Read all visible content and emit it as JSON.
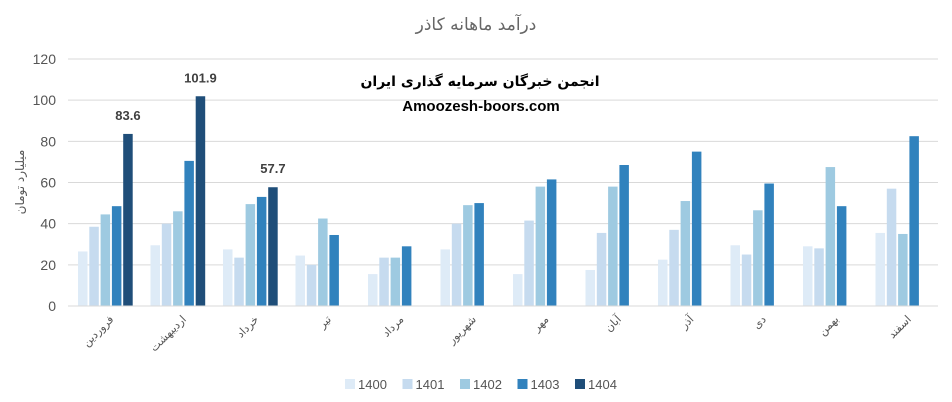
{
  "chart_data": {
    "type": "bar",
    "title": "درآمد ماهانه کاذر",
    "ylabel": "میلیارد تومان",
    "xlabel": "",
    "ylim": [
      0,
      120
    ],
    "yticks": [
      0,
      20,
      40,
      60,
      80,
      100,
      120
    ],
    "grid": true,
    "legend_position": "bottom",
    "categories": [
      "فروردین",
      "اردیبهشت",
      "خرداد",
      "تیر",
      "مرداد",
      "شهریور",
      "مهر",
      "آبان",
      "آذر",
      "دی",
      "بهمن",
      "اسفند"
    ],
    "series": [
      {
        "name": "1400",
        "color": "#deebf7",
        "values": [
          26.5,
          29.5,
          27.5,
          24.5,
          15.5,
          27.5,
          15.5,
          17.5,
          22.5,
          29.5,
          29.0,
          35.5
        ]
      },
      {
        "name": "1401",
        "color": "#c6dbef",
        "values": [
          38.5,
          40.0,
          23.5,
          20.0,
          23.5,
          40.0,
          41.5,
          35.5,
          37.0,
          25.0,
          28.0,
          57.0
        ]
      },
      {
        "name": "1402",
        "color": "#9ecae1",
        "values": [
          44.5,
          46.0,
          49.5,
          42.5,
          23.5,
          49.0,
          58.0,
          58.0,
          51.0,
          46.5,
          67.5,
          35.0
        ]
      },
      {
        "name": "1403",
        "color": "#3182bd",
        "values": [
          48.5,
          70.5,
          53.0,
          34.5,
          29.0,
          50.0,
          61.5,
          68.5,
          75.0,
          59.5,
          48.5,
          82.5
        ]
      },
      {
        "name": "1404",
        "color": "#1f4e79",
        "values": [
          83.6,
          101.9,
          57.7,
          null,
          null,
          null,
          null,
          null,
          null,
          null,
          null,
          null
        ]
      }
    ],
    "data_labels": [
      {
        "series": "1404",
        "category": "فروردین",
        "text": "83.6"
      },
      {
        "series": "1404",
        "category": "اردیبهشت",
        "text": "101.9"
      },
      {
        "series": "1404",
        "category": "خرداد",
        "text": "57.7"
      }
    ]
  },
  "watermark": {
    "line1": "انجمن خبرگان سرمایه گذاری ایران",
    "line2": "Amoozesh-boors.com"
  }
}
